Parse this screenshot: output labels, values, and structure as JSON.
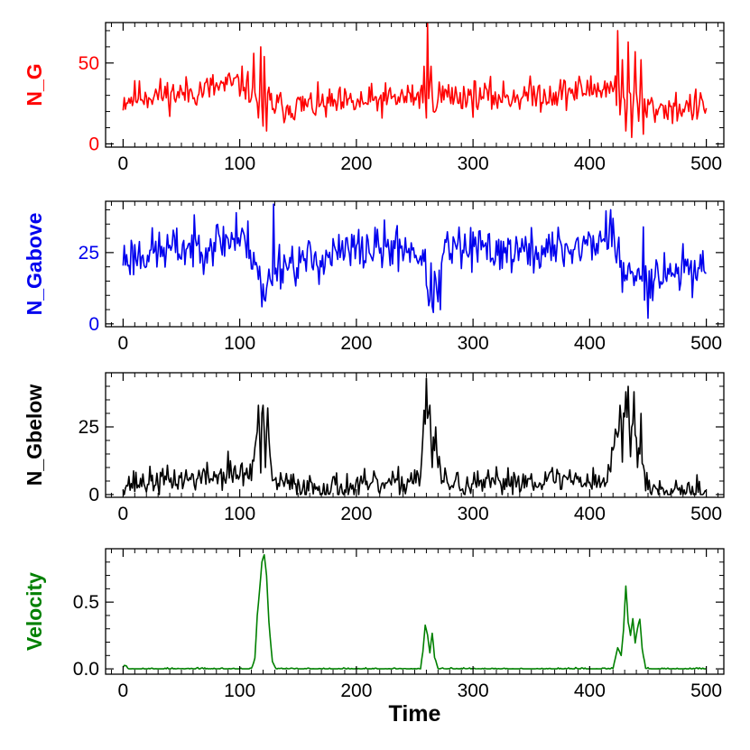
{
  "chart_data": [
    {
      "id": "ng",
      "type": "line",
      "ylabel": "N_G",
      "color": "#ff0000",
      "ylabel_color": "#ff0000",
      "ytick_color": "#ff0000",
      "xlim": [
        -15,
        515
      ],
      "ylim": [
        -2,
        75
      ],
      "xticks": [
        0,
        100,
        200,
        300,
        400,
        500
      ],
      "xtick_labels": [
        "0",
        "100",
        "200",
        "300",
        "400",
        "500"
      ],
      "yticks": [
        0,
        50
      ],
      "ytick_labels": [
        "0",
        "50"
      ],
      "profile": {
        "seed": 11,
        "noise": 5,
        "min": 0,
        "max": 80,
        "segments": [
          [
            0,
            27
          ],
          [
            15,
            30
          ],
          [
            50,
            31
          ],
          [
            95,
            37
          ],
          [
            105,
            37
          ],
          [
            110,
            32
          ],
          [
            118,
            28
          ],
          [
            126,
            25
          ],
          [
            135,
            23
          ],
          [
            200,
            25
          ],
          [
            255,
            30
          ],
          [
            270,
            30
          ],
          [
            320,
            29
          ],
          [
            370,
            31
          ],
          [
            415,
            35
          ],
          [
            425,
            31
          ],
          [
            440,
            28
          ],
          [
            450,
            22
          ],
          [
            500,
            23
          ]
        ],
        "spikes": [
          {
            "x": 112,
            "y": 56
          },
          {
            "x": 116,
            "y": 16
          },
          {
            "x": 118,
            "y": 60
          },
          {
            "x": 120,
            "y": 11
          },
          {
            "x": 121,
            "y": 54
          },
          {
            "x": 123,
            "y": 8
          },
          {
            "x": 125,
            "y": 35
          },
          {
            "x": 258,
            "y": 48
          },
          {
            "x": 260,
            "y": 16
          },
          {
            "x": 261,
            "y": 75
          },
          {
            "x": 262,
            "y": 28
          },
          {
            "x": 264,
            "y": 48
          },
          {
            "x": 266,
            "y": 20
          },
          {
            "x": 422,
            "y": 42
          },
          {
            "x": 424,
            "y": 70
          },
          {
            "x": 426,
            "y": 18
          },
          {
            "x": 428,
            "y": 52
          },
          {
            "x": 431,
            "y": 8
          },
          {
            "x": 433,
            "y": 63
          },
          {
            "x": 436,
            "y": 4
          },
          {
            "x": 439,
            "y": 57
          },
          {
            "x": 442,
            "y": 14
          },
          {
            "x": 444,
            "y": 52
          },
          {
            "x": 446,
            "y": 6
          }
        ]
      }
    },
    {
      "id": "ngabove",
      "type": "line",
      "ylabel": "N_Gabove",
      "color": "#0000ee",
      "ylabel_color": "#0000ee",
      "ytick_color": "#0000ee",
      "xlim": [
        -15,
        515
      ],
      "ylim": [
        -1,
        43
      ],
      "xticks": [
        0,
        100,
        200,
        300,
        400,
        500
      ],
      "xtick_labels": [
        "0",
        "100",
        "200",
        "300",
        "400",
        "500"
      ],
      "yticks": [
        0,
        25
      ],
      "ytick_labels": [
        "0",
        "25"
      ],
      "profile": {
        "seed": 23,
        "noise": 4,
        "min": 0,
        "max": 42,
        "segments": [
          [
            0,
            23
          ],
          [
            20,
            25
          ],
          [
            60,
            27
          ],
          [
            95,
            30
          ],
          [
            108,
            28
          ],
          [
            114,
            22
          ],
          [
            121,
            11
          ],
          [
            126,
            16
          ],
          [
            130,
            21
          ],
          [
            160,
            22
          ],
          [
            200,
            26
          ],
          [
            245,
            27
          ],
          [
            255,
            24
          ],
          [
            263,
            12
          ],
          [
            270,
            14
          ],
          [
            276,
            26
          ],
          [
            320,
            26
          ],
          [
            350,
            25
          ],
          [
            390,
            27
          ],
          [
            410,
            29
          ],
          [
            418,
            33
          ],
          [
            423,
            25
          ],
          [
            428,
            17
          ],
          [
            440,
            16
          ],
          [
            460,
            18
          ],
          [
            500,
            20
          ]
        ],
        "spikes": [
          {
            "x": 97,
            "y": 39
          },
          {
            "x": 119,
            "y": 6
          },
          {
            "x": 122,
            "y": 8
          },
          {
            "x": 129,
            "y": 42
          },
          {
            "x": 266,
            "y": 4
          },
          {
            "x": 272,
            "y": 5
          },
          {
            "x": 418,
            "y": 40
          },
          {
            "x": 420,
            "y": 37
          },
          {
            "x": 446,
            "y": 34
          },
          {
            "x": 450,
            "y": 2
          }
        ]
      }
    },
    {
      "id": "ngbelow",
      "type": "line",
      "ylabel": "N_Gbelow",
      "color": "#000000",
      "ylabel_color": "#000000",
      "ytick_color": "#000000",
      "xlim": [
        -15,
        515
      ],
      "ylim": [
        -1,
        45
      ],
      "xticks": [
        0,
        100,
        200,
        300,
        400,
        500
      ],
      "xtick_labels": [
        "0",
        "100",
        "200",
        "300",
        "400",
        "500"
      ],
      "yticks": [
        0,
        25
      ],
      "ytick_labels": [
        "0",
        "25"
      ],
      "profile": {
        "seed": 37,
        "noise": 2.5,
        "min": 0,
        "max": 45,
        "segments": [
          [
            0,
            4
          ],
          [
            60,
            6
          ],
          [
            110,
            8
          ],
          [
            114,
            20
          ],
          [
            118,
            26
          ],
          [
            124,
            20
          ],
          [
            128,
            5
          ],
          [
            150,
            3
          ],
          [
            200,
            3
          ],
          [
            240,
            4
          ],
          [
            255,
            8
          ],
          [
            258,
            28
          ],
          [
            262,
            30
          ],
          [
            265,
            16
          ],
          [
            270,
            15
          ],
          [
            273,
            5
          ],
          [
            300,
            3
          ],
          [
            330,
            5
          ],
          [
            380,
            6
          ],
          [
            415,
            5
          ],
          [
            421,
            18
          ],
          [
            426,
            28
          ],
          [
            432,
            30
          ],
          [
            438,
            22
          ],
          [
            444,
            16
          ],
          [
            448,
            3
          ],
          [
            500,
            2
          ]
        ],
        "spikes": [
          {
            "x": 90,
            "y": 16
          },
          {
            "x": 116,
            "y": 33
          },
          {
            "x": 118,
            "y": 8
          },
          {
            "x": 120,
            "y": 33
          },
          {
            "x": 122,
            "y": 10
          },
          {
            "x": 124,
            "y": 32
          },
          {
            "x": 259,
            "y": 26
          },
          {
            "x": 260,
            "y": 43
          },
          {
            "x": 263,
            "y": 33
          },
          {
            "x": 265,
            "y": 10
          },
          {
            "x": 268,
            "y": 25
          },
          {
            "x": 270,
            "y": 10
          },
          {
            "x": 426,
            "y": 33
          },
          {
            "x": 428,
            "y": 12
          },
          {
            "x": 431,
            "y": 38
          },
          {
            "x": 433,
            "y": 40
          },
          {
            "x": 435,
            "y": 14
          },
          {
            "x": 438,
            "y": 38
          },
          {
            "x": 441,
            "y": 10
          },
          {
            "x": 444,
            "y": 30
          }
        ]
      }
    },
    {
      "id": "velocity",
      "type": "line",
      "ylabel": "Velocity",
      "xlabel": "Time",
      "color": "#008000",
      "ylabel_color": "#008000",
      "ytick_color": "#000000",
      "xlim": [
        -15,
        515
      ],
      "ylim": [
        -0.04,
        0.9
      ],
      "xticks": [
        0,
        100,
        200,
        300,
        400,
        500
      ],
      "xtick_labels": [
        "0",
        "100",
        "200",
        "300",
        "400",
        "500"
      ],
      "yticks": [
        0,
        0.5
      ],
      "ytick_labels": [
        "0.0",
        "0.5"
      ],
      "profile": {
        "seed": 53,
        "noise": 0.004,
        "min": 0,
        "max": 0.9,
        "segments": [
          [
            0,
            0.02
          ],
          [
            2,
            0.03
          ],
          [
            5,
            0.0
          ],
          [
            110,
            0.0
          ],
          [
            113,
            0.08
          ],
          [
            115,
            0.4
          ],
          [
            117,
            0.58
          ],
          [
            119,
            0.8
          ],
          [
            121,
            0.85
          ],
          [
            123,
            0.7
          ],
          [
            125,
            0.35
          ],
          [
            128,
            0.05
          ],
          [
            131,
            0.0
          ],
          [
            255,
            0.0
          ],
          [
            257,
            0.13
          ],
          [
            259,
            0.33
          ],
          [
            261,
            0.25
          ],
          [
            263,
            0.12
          ],
          [
            265,
            0.27
          ],
          [
            267,
            0.09
          ],
          [
            270,
            0.0
          ],
          [
            420,
            0.0
          ],
          [
            424,
            0.16
          ],
          [
            427,
            0.1
          ],
          [
            429,
            0.3
          ],
          [
            431,
            0.62
          ],
          [
            433,
            0.35
          ],
          [
            435,
            0.25
          ],
          [
            437,
            0.38
          ],
          [
            439,
            0.2
          ],
          [
            441,
            0.3
          ],
          [
            443,
            0.37
          ],
          [
            445,
            0.15
          ],
          [
            448,
            0.0
          ],
          [
            500,
            0.0
          ]
        ],
        "spikes": []
      }
    }
  ]
}
